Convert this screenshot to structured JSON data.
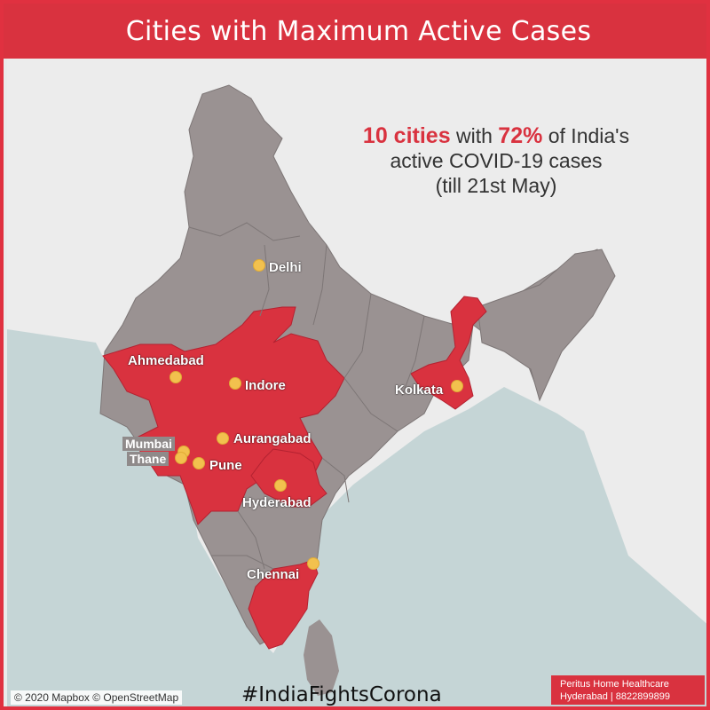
{
  "header": {
    "title": "Cities with Maximum Active Cases"
  },
  "headline": {
    "part1_highlight": "10 cities",
    "part2": " with ",
    "part3_highlight": "72%",
    "part4": " of India's",
    "line2": "active COVID-19 cases",
    "line3": "(till 21st May)"
  },
  "cities": [
    {
      "name": "Delhi",
      "boxed": false
    },
    {
      "name": "Ahmedabad",
      "boxed": false
    },
    {
      "name": "Indore",
      "boxed": false
    },
    {
      "name": "Kolkata",
      "boxed": false
    },
    {
      "name": "Aurangabad",
      "boxed": false
    },
    {
      "name": "Mumbai",
      "boxed": true
    },
    {
      "name": "Thane",
      "boxed": true
    },
    {
      "name": "Pune",
      "boxed": false
    },
    {
      "name": "Hyderabad",
      "boxed": false
    },
    {
      "name": "Chennai",
      "boxed": false
    }
  ],
  "footer": {
    "attribution": "© 2020 Mapbox © OpenStreetMap",
    "hashtag": "#IndiaFightsCorona",
    "sponsor_line1": "Peritus Home Healthcare",
    "sponsor_line2": "Hyderabad | 8822899899"
  },
  "colors": {
    "highlight_red": "#d9323f",
    "land_gray": "#9a9292",
    "water": "#c5d5d6",
    "marker_yellow": "#f2c14e"
  }
}
